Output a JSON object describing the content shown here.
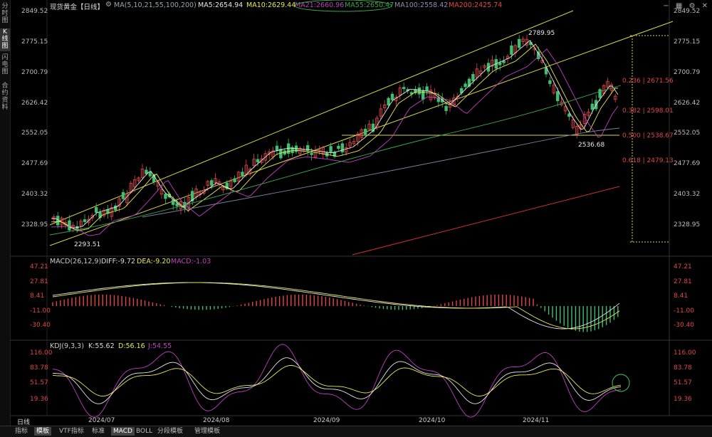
{
  "header": {
    "symbol": "现货黄金【日线】",
    "ma_params": "MA(5,10,21,55,100,200)",
    "ma5": "MA5:2654.94",
    "ma10": "MA10:2629.44",
    "ma21": "MA21:2660.96",
    "ma55": "MA55:2650.47",
    "ma100": "MA100:2558.42",
    "ma200": "MA200:2425.74"
  },
  "colors": {
    "up": "#e04848",
    "down": "#3fbf6f",
    "ma5": "#e6e6e6",
    "ma10": "#e8e85a",
    "ma21": "#c040c0",
    "ma55": "#3aa64a",
    "ma100": "#7f7f9f",
    "ma200": "#d03030",
    "trendline": "#d8d84a"
  },
  "sidebar": {
    "tabs": [
      "分时图",
      "K线图",
      "闪电图",
      "合约资料"
    ]
  },
  "price_axis": {
    "labels": [
      "2849.52",
      "2775.15",
      "2700.79",
      "2626.42",
      "2552.05",
      "2477.69",
      "2403.32",
      "2328.95"
    ]
  },
  "price_annotations": {
    "high": "2789.95",
    "low_left": "2293.51",
    "low_right": "2536.68",
    "fib_236": "0.236 | 2671.56",
    "fib_382": "0.382 | 2598.01",
    "fib_500": "0.500 | 2538.67",
    "fib_618": "0.618 | 2479.13"
  },
  "macd": {
    "title": "MACD(26,12,9)",
    "diff": "DIFF:-9.72",
    "dea": "DEA:-9.20",
    "macd": "MACD:-1.03",
    "axis": [
      "47.21",
      "27.81",
      "8.41",
      "-11.00",
      "-30.40"
    ]
  },
  "kdj": {
    "title": "KDJ(9,3,3)",
    "k": "K:55.62",
    "d": "D:56.16",
    "j": "J:54.55",
    "axis": [
      "116.00",
      "83.78",
      "51.57",
      "19.36"
    ]
  },
  "time_axis": {
    "period": "日线",
    "labels": [
      "2024/07",
      "2024/08",
      "2024/09",
      "2024/10",
      "2024/11"
    ]
  },
  "bottom_tabs": [
    "指标",
    "模板",
    "VTF指标",
    "标准",
    "MACD",
    "BOLL",
    "分段模板",
    "管理模板"
  ],
  "top_icons": [
    "minus-icon",
    "grid-icon",
    "settings-icon",
    "close-icon"
  ]
}
